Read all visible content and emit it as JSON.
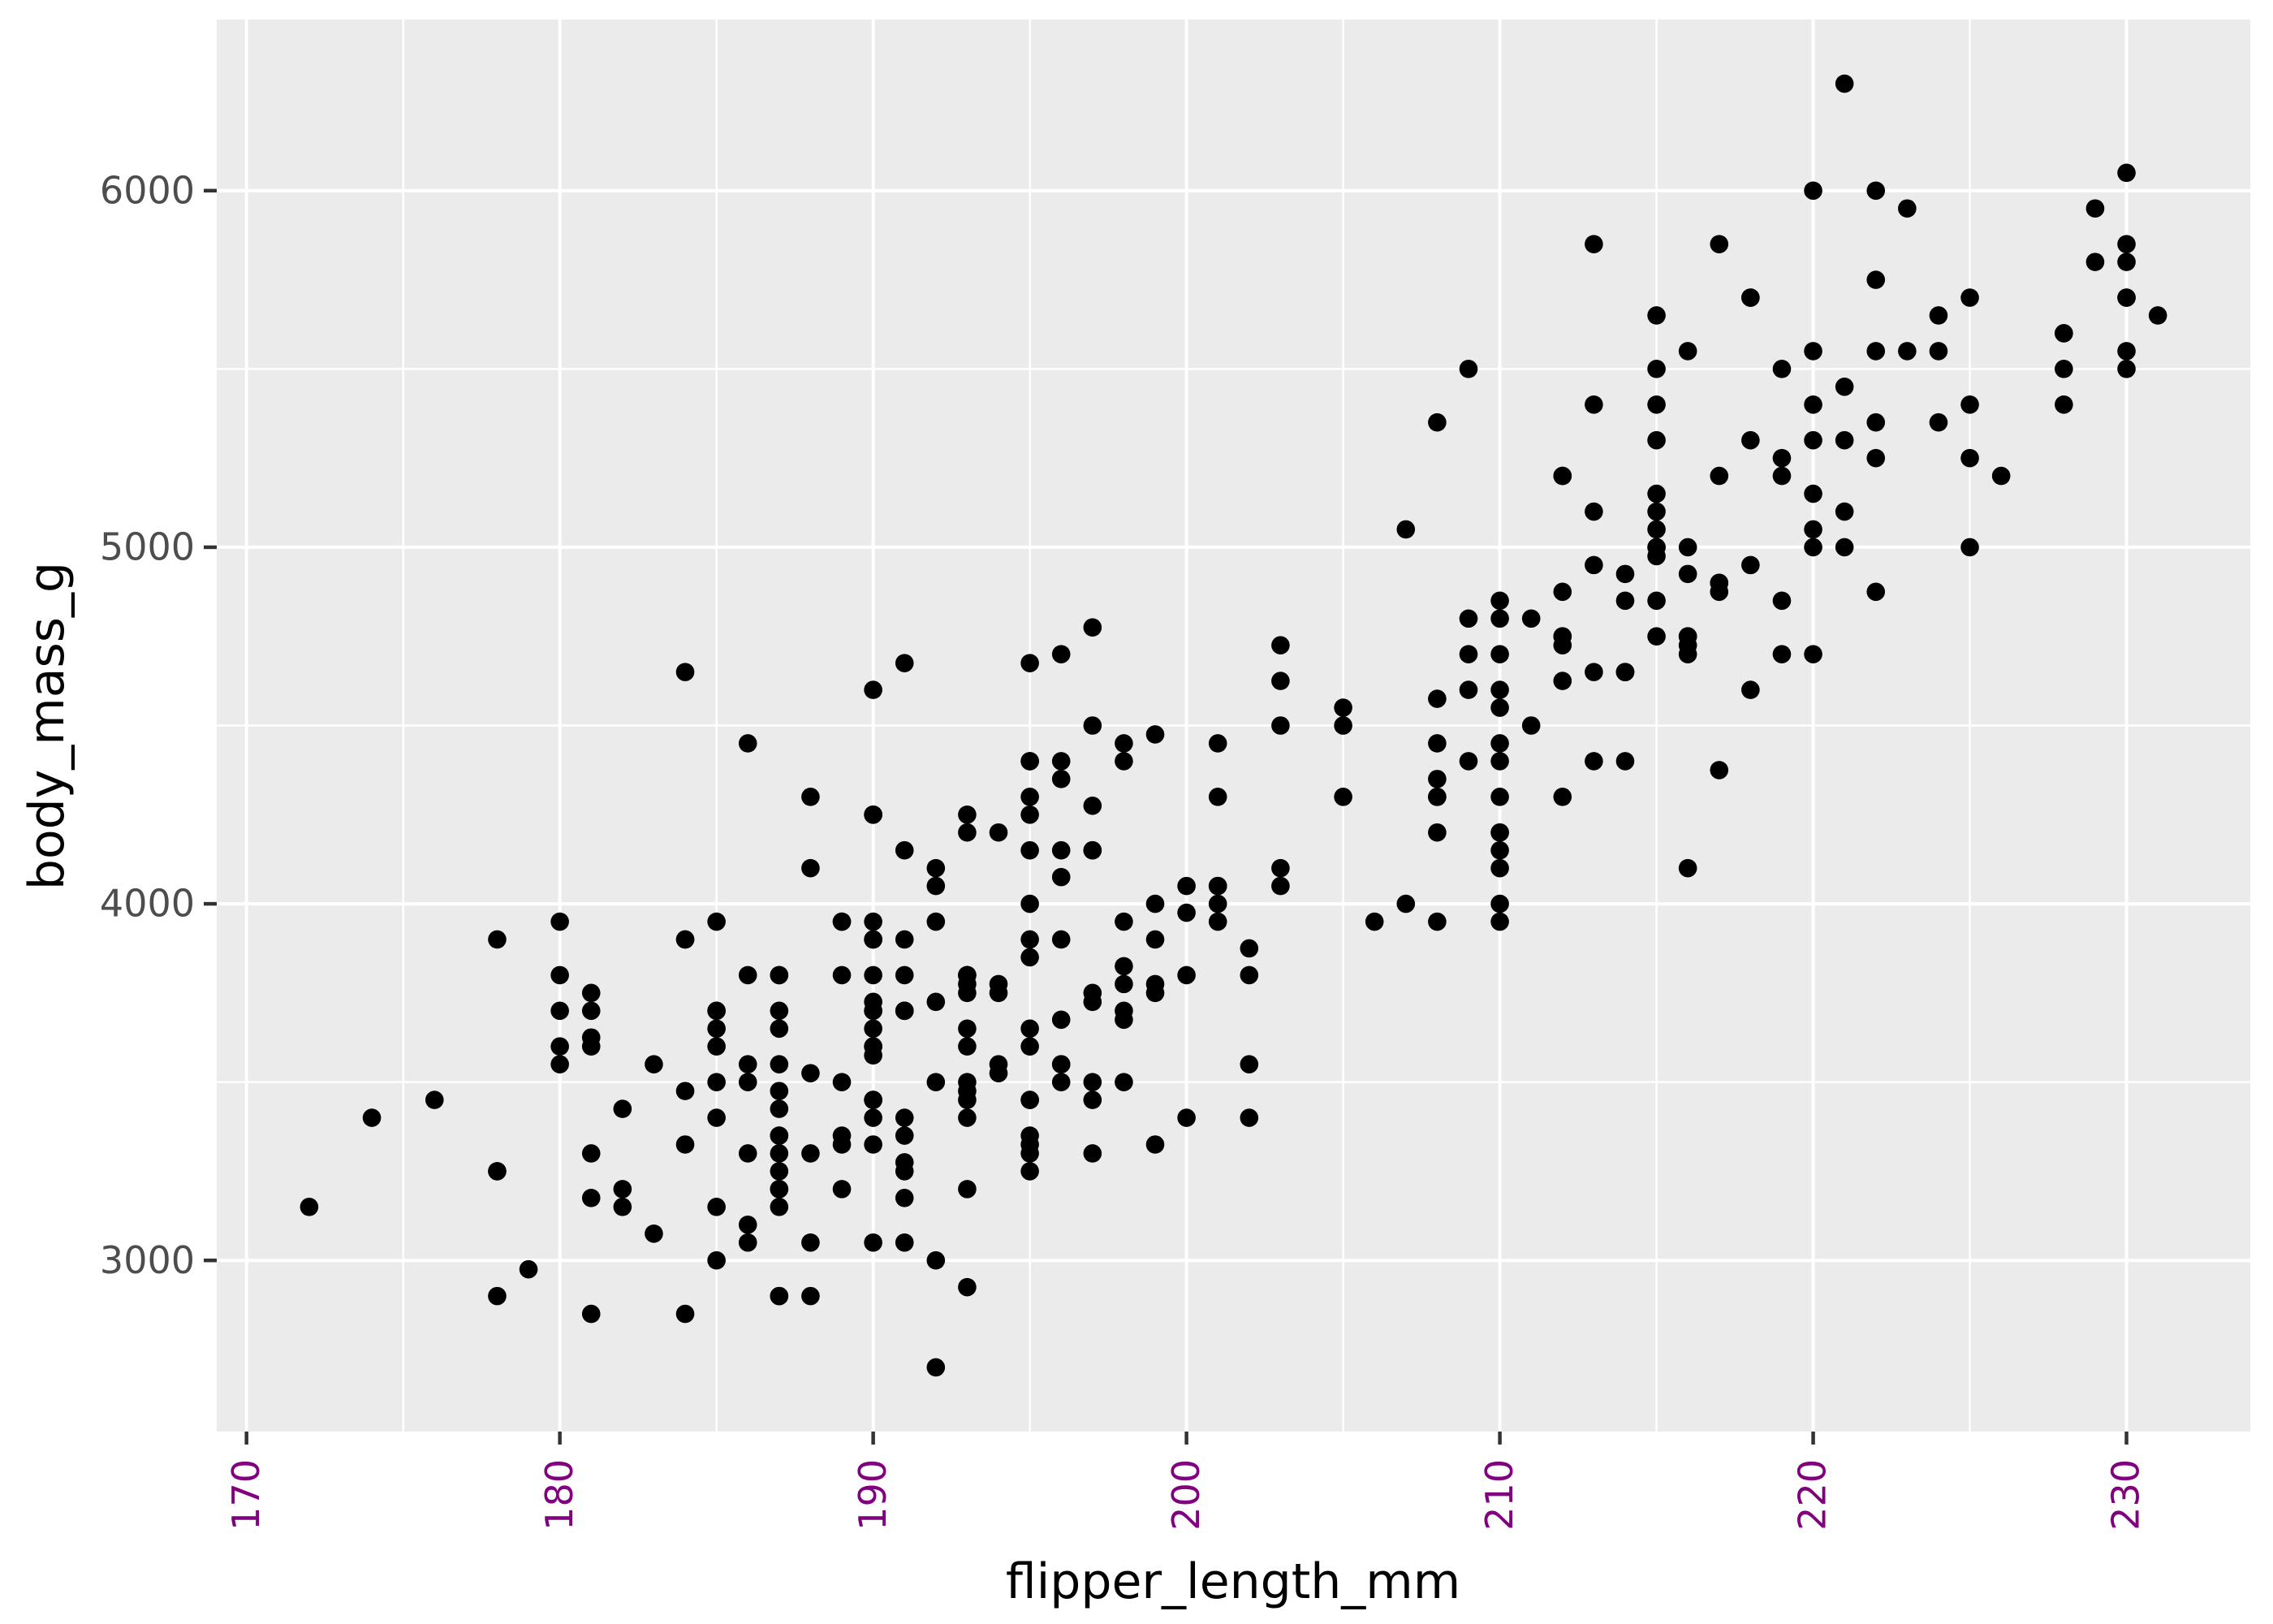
{
  "chart_data": {
    "type": "scatter",
    "title": "",
    "xlabel": "flipper_length_mm",
    "ylabel": "body_mass_g",
    "x_ticks": [
      170,
      180,
      190,
      200,
      210,
      220,
      230
    ],
    "y_ticks": [
      3000,
      4000,
      5000,
      6000
    ],
    "x_minor": [
      175,
      185,
      195,
      205,
      215,
      225
    ],
    "y_minor": [
      3500,
      4500,
      5500
    ],
    "xlim": [
      169.05,
      233.95
    ],
    "ylim": [
      2520,
      6480
    ],
    "grid": "major+minor",
    "legend": "none",
    "points": [
      [
        181,
        3750
      ],
      [
        186,
        3800
      ],
      [
        195,
        3250
      ],
      [
        193,
        3450
      ],
      [
        190,
        3650
      ],
      [
        181,
        3625
      ],
      [
        195,
        4675
      ],
      [
        193,
        3475
      ],
      [
        190,
        4250
      ],
      [
        186,
        3300
      ],
      [
        180,
        3700
      ],
      [
        182,
        3200
      ],
      [
        191,
        3800
      ],
      [
        198,
        4400
      ],
      [
        185,
        3700
      ],
      [
        195,
        3450
      ],
      [
        197,
        4500
      ],
      [
        184,
        3325
      ],
      [
        194,
        4200
      ],
      [
        174,
        3400
      ],
      [
        180,
        3600
      ],
      [
        189,
        3800
      ],
      [
        185,
        3950
      ],
      [
        180,
        3800
      ],
      [
        187,
        3800
      ],
      [
        183,
        3550
      ],
      [
        187,
        3200
      ],
      [
        172,
        3150
      ],
      [
        180,
        3950
      ],
      [
        178,
        3250
      ],
      [
        178,
        3900
      ],
      [
        188,
        3300
      ],
      [
        184,
        3900
      ],
      [
        195,
        3325
      ],
      [
        196,
        4150
      ],
      [
        190,
        3950
      ],
      [
        180,
        3550
      ],
      [
        181,
        3300
      ],
      [
        184,
        4650
      ],
      [
        182,
        3150
      ],
      [
        195,
        3900
      ],
      [
        186,
        3100
      ],
      [
        196,
        4400
      ],
      [
        185,
        3000
      ],
      [
        190,
        4600
      ],
      [
        182,
        3425
      ],
      [
        179,
        2975
      ],
      [
        190,
        3450
      ],
      [
        191,
        4150
      ],
      [
        186,
        3500
      ],
      [
        188,
        4300
      ],
      [
        190,
        3450
      ],
      [
        200,
        4050
      ],
      [
        187,
        2900
      ],
      [
        191,
        3700
      ],
      [
        186,
        3550
      ],
      [
        193,
        3800
      ],
      [
        181,
        2850
      ],
      [
        194,
        3750
      ],
      [
        185,
        3150
      ],
      [
        195,
        4400
      ],
      [
        185,
        3600
      ],
      [
        192,
        4050
      ],
      [
        184,
        2850
      ],
      [
        192,
        3950
      ],
      [
        195,
        3350
      ],
      [
        188,
        4100
      ],
      [
        190,
        3050
      ],
      [
        198,
        4450
      ],
      [
        190,
        3600
      ],
      [
        190,
        3900
      ],
      [
        196,
        3550
      ],
      [
        197,
        4150
      ],
      [
        190,
        3700
      ],
      [
        195,
        4250
      ],
      [
        191,
        3700
      ],
      [
        184,
        3900
      ],
      [
        187,
        3550
      ],
      [
        195,
        4000
      ],
      [
        189,
        3200
      ],
      [
        196,
        4700
      ],
      [
        187,
        3800
      ],
      [
        193,
        4200
      ],
      [
        191,
        3350
      ],
      [
        194,
        3550
      ],
      [
        190,
        3800
      ],
      [
        189,
        3500
      ],
      [
        189,
        3950
      ],
      [
        190,
        3600
      ],
      [
        202,
        3550
      ],
      [
        205,
        4300
      ],
      [
        185,
        3400
      ],
      [
        186,
        4450
      ],
      [
        187,
        3300
      ],
      [
        208,
        4300
      ],
      [
        190,
        3700
      ],
      [
        196,
        4350
      ],
      [
        178,
        2900
      ],
      [
        192,
        4100
      ],
      [
        192,
        3725
      ],
      [
        203,
        4725
      ],
      [
        183,
        3075
      ],
      [
        190,
        4250
      ],
      [
        193,
        2925
      ],
      [
        199,
        3750
      ],
      [
        190,
        3900
      ],
      [
        181,
        3175
      ],
      [
        197,
        4775
      ],
      [
        198,
        3825
      ],
      [
        191,
        4675
      ],
      [
        193,
        3200
      ],
      [
        197,
        4275
      ],
      [
        191,
        3900
      ],
      [
        196,
        4075
      ],
      [
        188,
        2900
      ],
      [
        199,
        3775
      ],
      [
        189,
        3350
      ],
      [
        189,
        3325
      ],
      [
        187,
        3150
      ],
      [
        198,
        3500
      ],
      [
        176,
        3450
      ],
      [
        202,
        3875
      ],
      [
        186,
        3050
      ],
      [
        199,
        4000
      ],
      [
        191,
        3275
      ],
      [
        195,
        4300
      ],
      [
        191,
        3050
      ],
      [
        210,
        4000
      ],
      [
        190,
        3325
      ],
      [
        197,
        3500
      ],
      [
        193,
        3500
      ],
      [
        199,
        4475
      ],
      [
        187,
        3425
      ],
      [
        190,
        3900
      ],
      [
        191,
        3175
      ],
      [
        200,
        3975
      ],
      [
        185,
        3500
      ],
      [
        193,
        4250
      ],
      [
        193,
        3400
      ],
      [
        187,
        3475
      ],
      [
        188,
        3050
      ],
      [
        190,
        3725
      ],
      [
        192,
        3000
      ],
      [
        185,
        3650
      ],
      [
        190,
        4250
      ],
      [
        184,
        3475
      ],
      [
        195,
        3450
      ],
      [
        193,
        3750
      ],
      [
        187,
        3700
      ],
      [
        201,
        4000
      ],
      [
        191,
        3700
      ],
      [
        211,
        4500
      ],
      [
        230,
        5700
      ],
      [
        210,
        4450
      ],
      [
        218,
        5700
      ],
      [
        215,
        5400
      ],
      [
        210,
        4550
      ],
      [
        211,
        4800
      ],
      [
        219,
        5200
      ],
      [
        209,
        4400
      ],
      [
        215,
        5150
      ],
      [
        214,
        4650
      ],
      [
        216,
        5550
      ],
      [
        214,
        4650
      ],
      [
        213,
        5850
      ],
      [
        210,
        4200
      ],
      [
        217,
        5850
      ],
      [
        210,
        4150
      ],
      [
        221,
        6300
      ],
      [
        223,
        5950
      ],
      [
        209,
        4800
      ],
      [
        222,
        5350
      ],
      [
        218,
        5700
      ],
      [
        215,
        5000
      ],
      [
        213,
        4400
      ],
      [
        215,
        5050
      ],
      [
        215,
        5000
      ],
      [
        215,
        5100
      ],
      [
        216,
        4100
      ],
      [
        215,
        5650
      ],
      [
        210,
        4600
      ],
      [
        220,
        5550
      ],
      [
        222,
        5250
      ],
      [
        209,
        4700
      ],
      [
        207,
        5050
      ],
      [
        230,
        6050
      ],
      [
        220,
        5150
      ],
      [
        220,
        5400
      ],
      [
        213,
        4950
      ],
      [
        219,
        5250
      ],
      [
        208,
        4350
      ],
      [
        208,
        5350
      ],
      [
        208,
        3950
      ],
      [
        225,
        5700
      ],
      [
        210,
        4300
      ],
      [
        216,
        4750
      ],
      [
        222,
        5550
      ],
      [
        217,
        4900
      ],
      [
        210,
        4200
      ],
      [
        225,
        5400
      ],
      [
        213,
        5100
      ],
      [
        215,
        5300
      ],
      [
        210,
        4850
      ],
      [
        220,
        5300
      ],
      [
        210,
        4400
      ],
      [
        225,
        5000
      ],
      [
        217,
        4900
      ],
      [
        220,
        5050
      ],
      [
        208,
        4300
      ],
      [
        220,
        5000
      ],
      [
        208,
        4450
      ],
      [
        224,
        5550
      ],
      [
        208,
        4200
      ],
      [
        221,
        5300
      ],
      [
        214,
        4400
      ],
      [
        231,
        5650
      ],
      [
        219,
        4700
      ],
      [
        230,
        5700
      ],
      [
        214,
        4650
      ],
      [
        229,
        5800
      ],
      [
        220,
        4700
      ],
      [
        223,
        5550
      ],
      [
        216,
        4750
      ],
      [
        221,
        5000
      ],
      [
        221,
        5100
      ],
      [
        217,
        5200
      ],
      [
        216,
        4700
      ],
      [
        230,
        5800
      ],
      [
        209,
        4600
      ],
      [
        220,
        6000
      ],
      [
        215,
        4750
      ],
      [
        212,
        5200
      ],
      [
        212,
        4625
      ],
      [
        221,
        5450
      ],
      [
        212,
        4725
      ],
      [
        224,
        5350
      ],
      [
        212,
        4750
      ],
      [
        228,
        5600
      ],
      [
        218,
        4600
      ],
      [
        218,
        5300
      ],
      [
        212,
        4875
      ],
      [
        230,
        5550
      ],
      [
        218,
        4950
      ],
      [
        228,
        5400
      ],
      [
        212,
        4750
      ],
      [
        224,
        5650
      ],
      [
        214,
        4850
      ],
      [
        226,
        5200
      ],
      [
        216,
        4925
      ],
      [
        222,
        4875
      ],
      [
        203,
        4625
      ],
      [
        225,
        5250
      ],
      [
        219,
        4850
      ],
      [
        228,
        5600
      ],
      [
        215,
        4975
      ],
      [
        228,
        5500
      ],
      [
        216,
        4725
      ],
      [
        215,
        5500
      ],
      [
        210,
        4700
      ],
      [
        219,
        5500
      ],
      [
        208,
        4575
      ],
      [
        209,
        5500
      ],
      [
        216,
        5000
      ],
      [
        229,
        5950
      ],
      [
        213,
        4650
      ],
      [
        230,
        5500
      ],
      [
        217,
        4375
      ],
      [
        230,
        5850
      ],
      [
        217,
        4875
      ],
      [
        222,
        6000
      ],
      [
        214,
        4925
      ],
      [
        215,
        4850
      ],
      [
        222,
        5750
      ],
      [
        212,
        5200
      ],
      [
        213,
        5400
      ],
      [
        192,
        3500
      ],
      [
        196,
        3900
      ],
      [
        193,
        3650
      ],
      [
        188,
        3525
      ],
      [
        197,
        3725
      ],
      [
        198,
        3950
      ],
      [
        178,
        3250
      ],
      [
        197,
        3750
      ],
      [
        195,
        4150
      ],
      [
        198,
        3700
      ],
      [
        193,
        3800
      ],
      [
        194,
        3775
      ],
      [
        185,
        3700
      ],
      [
        201,
        4050
      ],
      [
        190,
        3575
      ],
      [
        201,
        4050
      ],
      [
        197,
        3300
      ],
      [
        181,
        3700
      ],
      [
        190,
        3450
      ],
      [
        195,
        4400
      ],
      [
        181,
        3600
      ],
      [
        191,
        3400
      ],
      [
        187,
        2900
      ],
      [
        193,
        3800
      ],
      [
        195,
        3300
      ],
      [
        197,
        4150
      ],
      [
        200,
        3400
      ],
      [
        200,
        3800
      ],
      [
        191,
        3700
      ],
      [
        205,
        4550
      ],
      [
        187,
        3200
      ],
      [
        201,
        4300
      ],
      [
        187,
        3350
      ],
      [
        203,
        4100
      ],
      [
        195,
        3600
      ],
      [
        199,
        3900
      ],
      [
        195,
        3850
      ],
      [
        210,
        4800
      ],
      [
        192,
        2700
      ],
      [
        205,
        4500
      ],
      [
        210,
        3950
      ],
      [
        187,
        3650
      ],
      [
        196,
        3550
      ],
      [
        196,
        3500
      ],
      [
        196,
        3675
      ],
      [
        201,
        4450
      ],
      [
        190,
        3400
      ],
      [
        212,
        4300
      ],
      [
        187,
        3250
      ],
      [
        198,
        3675
      ],
      [
        199,
        3325
      ],
      [
        201,
        3950
      ],
      [
        193,
        3600
      ],
      [
        203,
        4500
      ],
      [
        187,
        3350
      ],
      [
        197,
        3450
      ],
      [
        191,
        3250
      ],
      [
        203,
        4050
      ],
      [
        202,
        3800
      ],
      [
        194,
        3525
      ],
      [
        206,
        3950
      ],
      [
        189,
        3950
      ],
      [
        195,
        3650
      ],
      [
        207,
        4000
      ],
      [
        202,
        3400
      ],
      [
        193,
        3775
      ],
      [
        210,
        4100
      ],
      [
        198,
        3775
      ]
    ]
  },
  "style": {
    "outer_bg": "#FFFFFF",
    "panel_bg": "#EBEBEB",
    "grid_color": "#FFFFFF",
    "point_color": "#000000",
    "x_tick_label_color": "#800080",
    "y_tick_label_color": "#4D4D4D",
    "tick_mark_color": "#333333",
    "axis_title_color": "#000000"
  }
}
